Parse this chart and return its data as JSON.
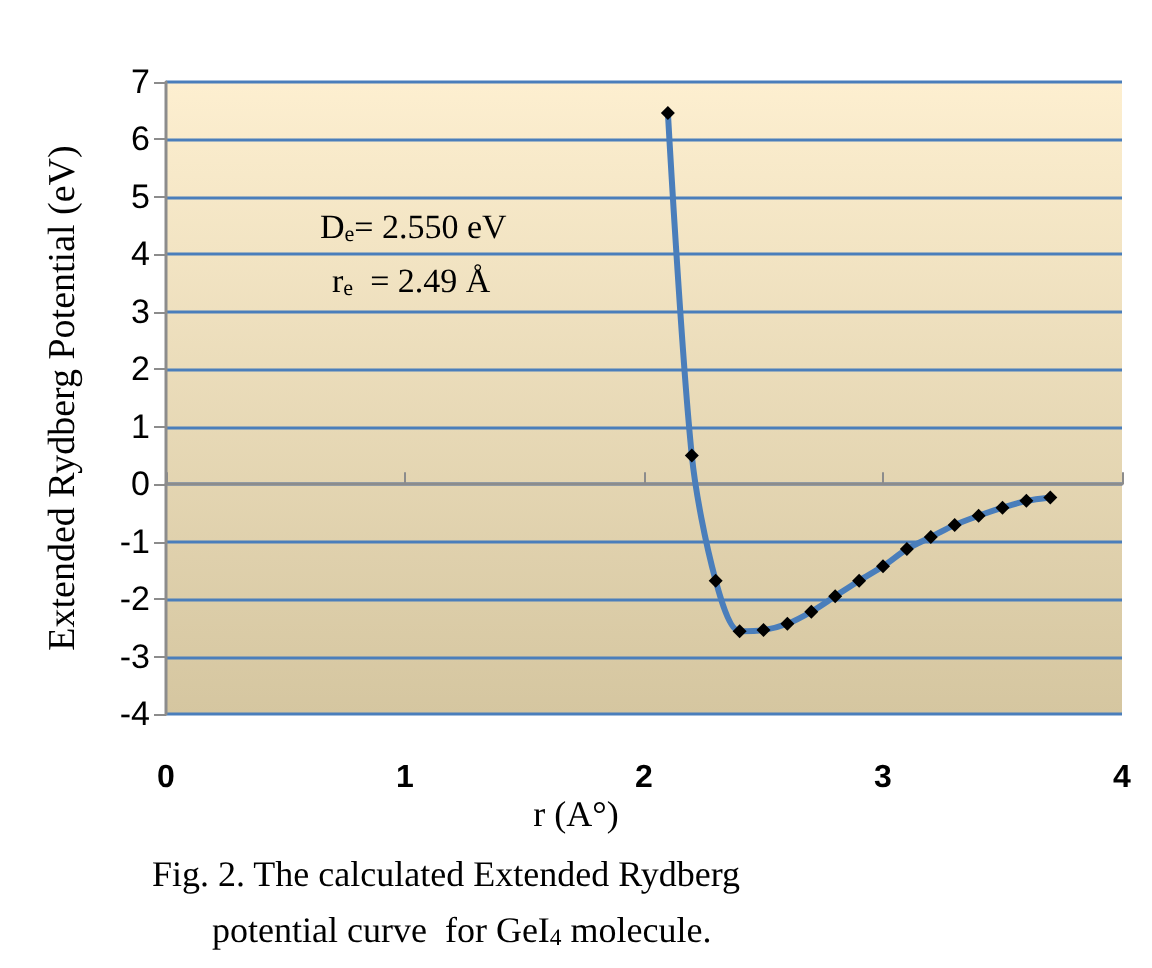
{
  "chart_data": {
    "type": "line",
    "xlabel": "r (A°)",
    "ylabel": "Extended Rydberg Potential (eV)",
    "x": [
      2.1,
      2.2,
      2.3,
      2.4,
      2.5,
      2.6,
      2.7,
      2.8,
      2.9,
      3.0,
      3.1,
      3.2,
      3.3,
      3.4,
      3.5,
      3.6,
      3.7
    ],
    "series": [
      {
        "color": "#4a7ebb",
        "values": [
          6.46,
          0.5,
          -1.68,
          -2.56,
          -2.54,
          -2.43,
          -2.22,
          -1.95,
          -1.68,
          -1.43,
          -1.13,
          -0.92,
          -0.71,
          -0.55,
          -0.41,
          -0.29,
          -0.23
        ]
      }
    ],
    "xlim": [
      0,
      4
    ],
    "xticks": [
      0,
      1,
      2,
      3,
      4
    ],
    "ylim": [
      -4,
      7
    ],
    "yticks": [
      -4,
      -3,
      -2,
      -1,
      0,
      1,
      2,
      3,
      4,
      5,
      6,
      7
    ],
    "grid": "y",
    "marker": "diamond",
    "line_style": "solid",
    "annotations": [
      "D$_{e}$= 2.550 eV",
      "r$_{e}$  = 2.49 Å",
      "Fig. 2. The calculated Extended Rydberg",
      "potential curve  for GeI$_{4}$ molecule."
    ]
  }
}
